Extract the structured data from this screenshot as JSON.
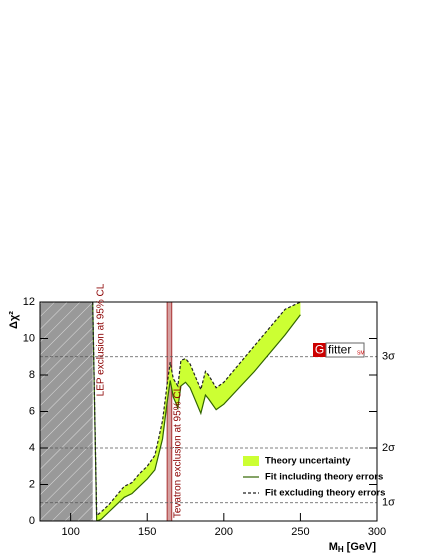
{
  "chart_data": {
    "type": "line",
    "y_label": "Δχ²",
    "x_label": {
      "symbol": "M",
      "subscript": "H",
      "unit": "[GeV]"
    },
    "xlim": [
      80,
      300
    ],
    "ylim": [
      0,
      12
    ],
    "xticks": [
      100,
      150,
      200,
      250,
      300
    ],
    "yticks": [
      0,
      2,
      4,
      6,
      8,
      10,
      12
    ],
    "x": [
      114.4,
      117,
      120,
      125,
      130,
      135,
      140,
      145,
      150,
      155,
      160,
      163,
      165,
      167,
      170,
      172,
      175,
      178,
      180,
      185,
      188,
      190,
      195,
      200,
      210,
      220,
      230,
      240,
      250
    ],
    "band": {
      "name": "Theory uncertainty",
      "color": "#ccff33"
    },
    "series": [
      {
        "name": "Fit including theory errors",
        "color": "#336600",
        "style": "solid",
        "values": [
          12,
          0,
          0.1,
          0.5,
          0.9,
          1.3,
          1.5,
          1.9,
          2.3,
          2.8,
          4.5,
          6.5,
          7.7,
          6.8,
          6.2,
          7.4,
          7.6,
          7.3,
          6.9,
          5.9,
          6.9,
          6.7,
          6.1,
          6.4,
          7.3,
          8.2,
          9.2,
          10.2,
          11.3
        ]
      },
      {
        "name": "Fit excluding theory errors",
        "color": "#222222",
        "style": "dashed",
        "values": [
          12,
          0.3,
          0.5,
          0.9,
          1.4,
          1.9,
          2.1,
          2.6,
          3.0,
          3.6,
          5.5,
          7.5,
          8.7,
          7.8,
          7.4,
          8.8,
          8.9,
          8.6,
          8.2,
          7.2,
          8.2,
          8.0,
          7.3,
          7.6,
          8.6,
          9.6,
          10.6,
          11.6,
          12
        ]
      }
    ],
    "sigma_lines": [
      {
        "value": 1,
        "label": "1σ"
      },
      {
        "value": 4,
        "label": "2σ"
      },
      {
        "value": 9,
        "label": "3σ"
      }
    ],
    "regions": [
      {
        "range": [
          80,
          114.4
        ],
        "label": "LEP exclusion at 95% CL",
        "color": "#999999"
      },
      {
        "range": [
          163,
          166
        ],
        "label": "Tevatron exclusion at 95% CL",
        "color": "#cc8888"
      }
    ],
    "logo": {
      "letter": "G",
      "word": "fitter",
      "tag": "SM"
    }
  }
}
